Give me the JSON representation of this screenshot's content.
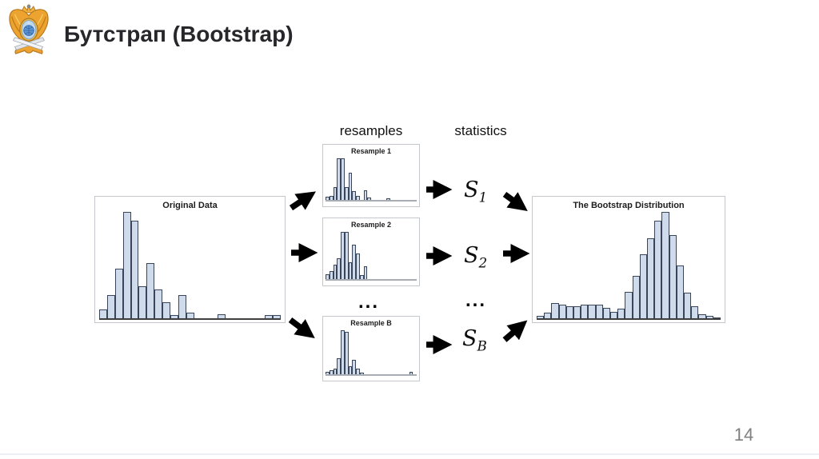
{
  "slide": {
    "title": "Бутстрап (Bootstrap)",
    "page_number": "14",
    "logo_icon": "double-headed-eagle-ministry-emblem"
  },
  "diagram": {
    "labels": {
      "resamples": "resamples",
      "statistics": "statistics"
    },
    "statistics": [
      {
        "base": "S",
        "sub": "1"
      },
      {
        "base": "S",
        "sub": "2"
      },
      {
        "base": "S",
        "sub": "B"
      }
    ],
    "ellipsis_resamples": "...",
    "ellipsis_statistics": "..."
  },
  "colors": {
    "bar_fill": "#cfdbea",
    "bar_stroke": "#39455a",
    "arrow": "#000000",
    "title_text": "#26262b",
    "page_number": "#7f7f7f"
  },
  "chart_data": [
    {
      "type": "bar",
      "title": "Original Data",
      "xlabel": "",
      "ylabel": "",
      "axes_shown": false,
      "values_unit": "relative_height_percent",
      "values": [
        8,
        22,
        47,
        100,
        92,
        30,
        52,
        27,
        15,
        3,
        22,
        5,
        0,
        0,
        0,
        4,
        0,
        0,
        0,
        0,
        0,
        3,
        3
      ]
    },
    {
      "type": "bar",
      "title": "Resample 1",
      "xlabel": "",
      "ylabel": "",
      "axes_shown": false,
      "values_unit": "relative_height_percent",
      "values": [
        8,
        10,
        30,
        97,
        97,
        30,
        62,
        20,
        10,
        0,
        22,
        5,
        0,
        0,
        0,
        0,
        4,
        0,
        0,
        0,
        0,
        0,
        0,
        0
      ]
    },
    {
      "type": "bar",
      "title": "Resample 2",
      "xlabel": "",
      "ylabel": "",
      "axes_shown": false,
      "values_unit": "relative_height_percent",
      "values": [
        10,
        16,
        30,
        42,
        97,
        97,
        35,
        70,
        52,
        8,
        26,
        0,
        0,
        0,
        0,
        0,
        0,
        0,
        0,
        0,
        0,
        0,
        0,
        0
      ]
    },
    {
      "type": "bar",
      "title": "Resample B",
      "xlabel": "",
      "ylabel": "",
      "axes_shown": false,
      "values_unit": "relative_height_percent",
      "values": [
        5,
        8,
        12,
        35,
        97,
        92,
        18,
        32,
        12,
        4,
        0,
        0,
        0,
        0,
        0,
        0,
        0,
        0,
        0,
        0,
        0,
        0,
        5,
        0
      ]
    },
    {
      "type": "bar",
      "title": "The Bootstrap Distribution",
      "xlabel": "",
      "ylabel": "",
      "axes_shown": false,
      "values_unit": "relative_height_percent",
      "values": [
        2,
        5,
        14,
        13,
        11,
        11,
        13,
        13,
        13,
        10,
        6,
        9,
        25,
        40,
        60,
        75,
        92,
        100,
        78,
        50,
        24,
        11,
        4,
        2,
        1
      ]
    }
  ]
}
